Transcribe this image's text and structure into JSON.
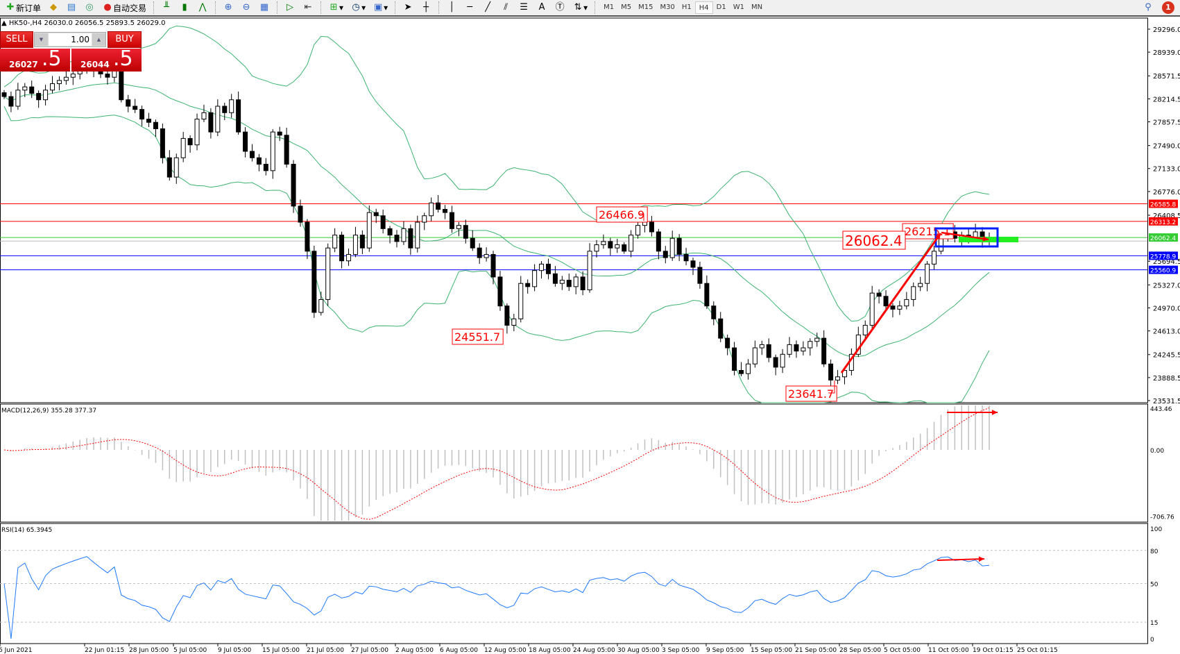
{
  "toolbar": {
    "new_order": "新订单",
    "auto_trading": "自动交易",
    "timeframes": [
      "M1",
      "M5",
      "M15",
      "M30",
      "H1",
      "H4",
      "D1",
      "W1",
      "MN"
    ],
    "active_timeframe": "H4",
    "notification_count": "1",
    "icons": [
      "new-order-icon",
      "market-watch-icon",
      "navigator-icon",
      "signals-icon",
      "auto-trading-icon",
      "bar-chart-icon",
      "candlestick-icon",
      "line-chart-icon",
      "zoom-in-icon",
      "zoom-out-icon",
      "tile-windows-icon",
      "auto-scroll-icon",
      "chart-shift-icon",
      "indicators-icon",
      "periods-icon",
      "templates-icon",
      "cursor-icon",
      "crosshair-icon",
      "vertical-line-icon",
      "horizontal-line-icon",
      "trendline-icon",
      "equidistant-channel-icon",
      "fibonacci-icon",
      "text-icon",
      "text-label-icon",
      "arrows-icon"
    ]
  },
  "chart": {
    "header": "HK50-,H4  26030.0 26056.5 25893.5 26029.0",
    "one_click": {
      "sell": "SELL",
      "buy": "BUY",
      "lot": "1.00",
      "sell_main": "26027",
      "sell_big": ".5",
      "buy_main": "26044",
      "buy_big": ".5"
    },
    "colors": {
      "bull": "#ffffff",
      "bear": "#000000",
      "bands": "#3cb371",
      "resistance": "#ff0000",
      "support": "#0000ff",
      "pivot": "#22cc22",
      "annot": "#ff0000"
    }
  },
  "chart_data": {
    "type": "candlestick",
    "symbol": "HK50-",
    "timeframe": "H4",
    "ylim": [
      23531.5,
      29296.0
    ],
    "closes": [
      28250,
      28100,
      28350,
      28400,
      28300,
      28200,
      28350,
      28450,
      28500,
      28550,
      28600,
      28650,
      28700,
      28650,
      28600,
      28550,
      28650,
      28200,
      28100,
      28050,
      27900,
      27850,
      27750,
      27300,
      27000,
      27300,
      27600,
      27500,
      27900,
      28000,
      27700,
      28100,
      28000,
      28200,
      27700,
      27400,
      27300,
      27200,
      27100,
      27700,
      27650,
      27200,
      26550,
      26300,
      25850,
      24900,
      25100,
      25900,
      26100,
      25700,
      25800,
      26100,
      25900,
      26450,
      26400,
      26200,
      26100,
      26000,
      26200,
      25900,
      26300,
      26400,
      26600,
      26500,
      26450,
      26200,
      26250,
      26050,
      25900,
      25750,
      25800,
      25450,
      25000,
      24700,
      24800,
      25350,
      25300,
      25550,
      25650,
      25500,
      25350,
      25400,
      25300,
      25450,
      25250,
      25850,
      25950,
      26000,
      25900,
      25950,
      25850,
      26100,
      26250,
      26300,
      26150,
      25850,
      25750,
      26050,
      25800,
      25700,
      25600,
      25350,
      25000,
      24800,
      24500,
      24350,
      24000,
      23950,
      24100,
      24350,
      24400,
      24200,
      24050,
      24250,
      24400,
      24300,
      24350,
      24450,
      24500,
      24100,
      23850,
      23900,
      24000,
      24250,
      24550,
      24700,
      25200,
      25150,
      25000,
      24950,
      25000,
      25100,
      25300,
      25350,
      25650,
      25850,
      26100,
      26150,
      26050,
      26100,
      26050,
      26150,
      26000,
      26029
    ],
    "price_ticks": [
      "29296.0",
      "28939.0",
      "28571.5",
      "28214.5",
      "27857.5",
      "27490.0",
      "27133.0",
      "26776.0",
      "26408.5",
      "25694.5",
      "25327.0",
      "24970.0",
      "24613.0",
      "24245.5",
      "23888.5",
      "23531.5"
    ],
    "levels": [
      {
        "value": 26585.8,
        "label": "26585.8",
        "color": "#ff0000"
      },
      {
        "value": 26313.2,
        "label": "26313.2",
        "color": "#ff0000"
      },
      {
        "value": 26062.4,
        "label": "26062.4",
        "color": "#33cc33"
      },
      {
        "value": 25778.9,
        "label": "25778.9",
        "color": "#0000ff"
      },
      {
        "value": 25560.9,
        "label": "25560.9",
        "color": "#0000ff"
      }
    ],
    "bid_line": 26029.0,
    "annotations": [
      {
        "text": "26466.9",
        "bar": 92
      },
      {
        "text": "24551.7",
        "bar": 73
      },
      {
        "text": "23641.7",
        "bar": 120
      },
      {
        "text": "26215.1",
        "bar": 137
      },
      {
        "text": "26062.4",
        "bar": 126
      }
    ],
    "x_labels": [
      "6 Jun 2021",
      "22 Jun 01:15",
      "28 Jun 05:00",
      "5 Jul 05:00",
      "9 Jul 05:00",
      "15 Jul 05:00",
      "21 Jul 05:00",
      "27 Jul 05:00",
      "2 Aug 05:00",
      "6 Aug 05:00",
      "12 Aug 05:00",
      "18 Aug 05:00",
      "24 Aug 05:00",
      "30 Aug 05:00",
      "3 Sep 05:00",
      "9 Sep 05:00",
      "15 Sep 05:00",
      "21 Sep 05:00",
      "28 Sep 05:00",
      "5 Oct 05:00",
      "11 Oct 05:00",
      "19 Oct 01:15",
      "25 Oct 01:15"
    ],
    "macd": {
      "label": "MACD(12,26,9) 355.28 377.37",
      "ylim": [
        -706.76,
        443.46
      ],
      "ticks": [
        "443.46",
        "0.00",
        "-706.76"
      ]
    },
    "rsi": {
      "label": "RSI(14) 65.3945",
      "ylim": [
        0,
        100
      ],
      "levels": [
        80,
        50,
        15
      ],
      "ticks": [
        "100",
        "80",
        "50",
        "15",
        "0"
      ]
    }
  }
}
